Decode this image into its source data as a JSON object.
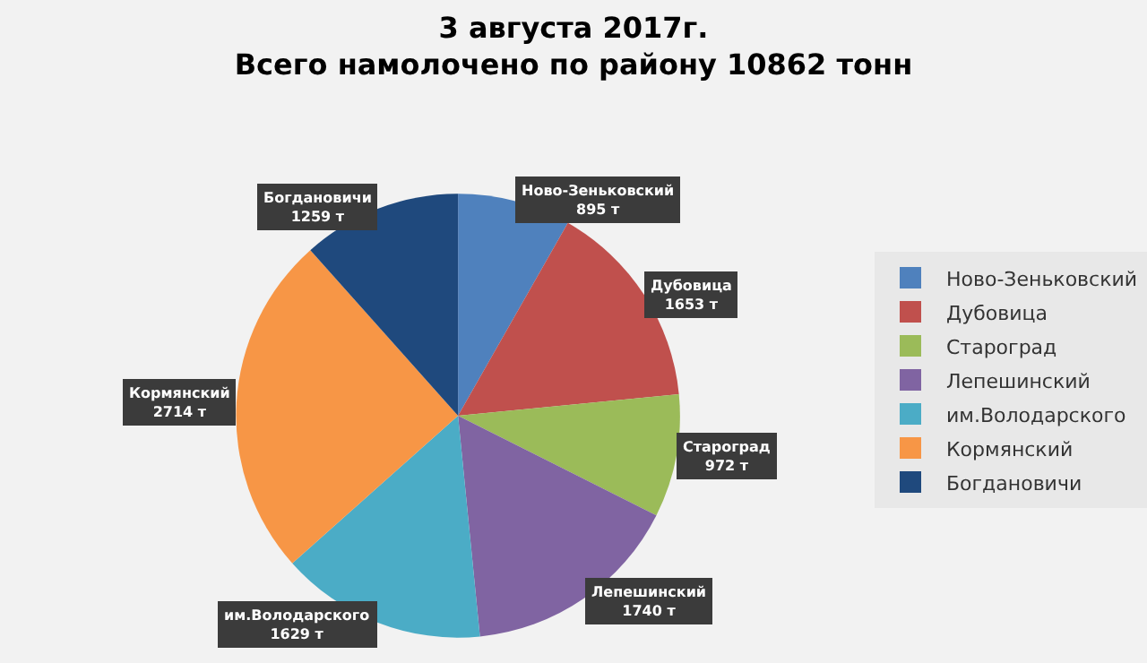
{
  "chart_data": {
    "type": "pie",
    "title": "3 августа 2017г.\nВсего намолочено по району 10862 тонн",
    "categories": [
      "Ново-Зеньковский",
      "Дубовица",
      "Староград",
      "Лепешинский",
      "им.Володарского",
      "Кормянский",
      "Богдановичи"
    ],
    "values": [
      895,
      1653,
      972,
      1740,
      1629,
      2714,
      1259
    ],
    "value_labels": [
      "895 т",
      "1653 т",
      "972 т",
      "1740 т",
      "1629 т",
      "2714 т",
      "1259 т"
    ],
    "colors": [
      "#4f81bd",
      "#c0504d",
      "#9bbb59",
      "#8064a2",
      "#4bacc6",
      "#f79646",
      "#1f497d"
    ],
    "legend": "right"
  }
}
